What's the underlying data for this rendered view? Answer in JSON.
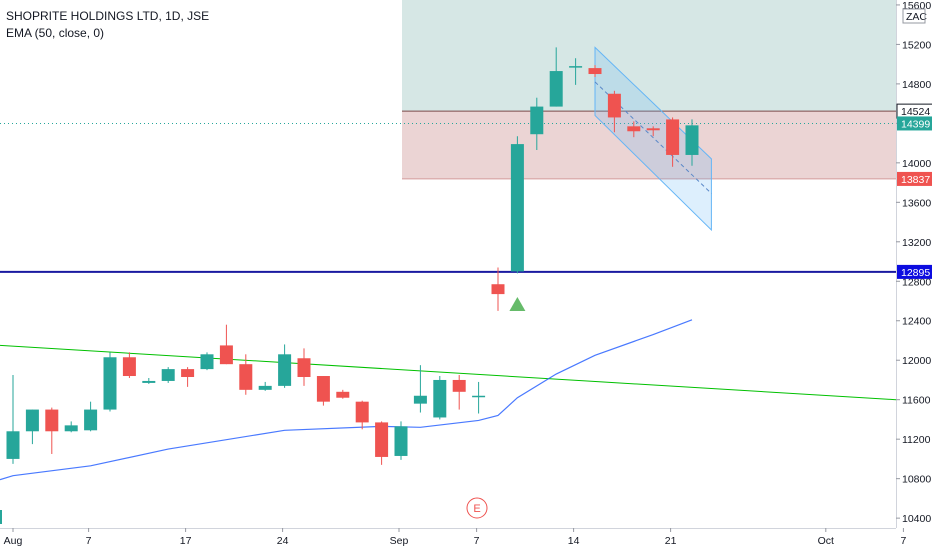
{
  "legend": {
    "title": "SHOPRITE HOLDINGS LTD, 1D, JSE",
    "indicator": "EMA (50, close, 0)"
  },
  "chart_data": {
    "type": "candlestick",
    "currency": "ZAC",
    "ylim": [
      10300,
      15650
    ],
    "y_ticks": [
      10400,
      10800,
      11200,
      11600,
      12000,
      12400,
      12800,
      13200,
      13600,
      14000,
      14400,
      14800,
      15200,
      15600
    ],
    "x_ticks": [
      {
        "label": "Aug",
        "index": 0
      },
      {
        "label": "7",
        "index": 4
      },
      {
        "label": "17",
        "index": 9
      },
      {
        "label": "24",
        "index": 14
      },
      {
        "label": "Sep",
        "index": 20
      },
      {
        "label": "7",
        "index": 24
      },
      {
        "label": "14",
        "index": 29
      },
      {
        "label": "21",
        "index": 34
      },
      {
        "label": "Oct",
        "index": 42
      },
      {
        "label": "7",
        "index": 46
      }
    ],
    "candles": [
      {
        "o": 11000,
        "h": 11850,
        "l": 10950,
        "c": 11280
      },
      {
        "o": 11280,
        "h": 11500,
        "l": 11150,
        "c": 11500
      },
      {
        "o": 11500,
        "h": 11520,
        "l": 11050,
        "c": 11280
      },
      {
        "o": 11280,
        "h": 11380,
        "l": 11270,
        "c": 11340
      },
      {
        "o": 11290,
        "h": 11580,
        "l": 11280,
        "c": 11500
      },
      {
        "o": 11500,
        "h": 12080,
        "l": 11480,
        "c": 12030
      },
      {
        "o": 12030,
        "h": 12080,
        "l": 11820,
        "c": 11840
      },
      {
        "o": 11770,
        "h": 11820,
        "l": 11760,
        "c": 11790
      },
      {
        "o": 11790,
        "h": 11930,
        "l": 11770,
        "c": 11910
      },
      {
        "o": 11910,
        "h": 11930,
        "l": 11730,
        "c": 11830
      },
      {
        "o": 11910,
        "h": 12080,
        "l": 11900,
        "c": 12060
      },
      {
        "o": 12150,
        "h": 12360,
        "l": 11960,
        "c": 11960
      },
      {
        "o": 11960,
        "h": 12060,
        "l": 11650,
        "c": 11700
      },
      {
        "o": 11700,
        "h": 11780,
        "l": 11690,
        "c": 11740
      },
      {
        "o": 11740,
        "h": 12160,
        "l": 11720,
        "c": 12060
      },
      {
        "o": 12020,
        "h": 12120,
        "l": 11740,
        "c": 11830
      },
      {
        "o": 11840,
        "h": 11840,
        "l": 11540,
        "c": 11580
      },
      {
        "o": 11680,
        "h": 11700,
        "l": 11610,
        "c": 11620
      },
      {
        "o": 11580,
        "h": 11590,
        "l": 11300,
        "c": 11370
      },
      {
        "o": 11370,
        "h": 11380,
        "l": 10940,
        "c": 11020
      },
      {
        "o": 11030,
        "h": 11380,
        "l": 10990,
        "c": 11330
      },
      {
        "o": 11560,
        "h": 11950,
        "l": 11470,
        "c": 11640
      },
      {
        "o": 11420,
        "h": 11840,
        "l": 11400,
        "c": 11800
      },
      {
        "o": 11800,
        "h": 11850,
        "l": 11500,
        "c": 11680
      },
      {
        "o": 11640,
        "h": 11780,
        "l": 11460,
        "c": 11640
      },
      {
        "o": 12770,
        "h": 12940,
        "l": 12500,
        "c": 12670
      },
      {
        "o": 12900,
        "h": 14270,
        "l": 12880,
        "c": 14190
      },
      {
        "o": 14290,
        "h": 14660,
        "l": 14130,
        "c": 14570
      },
      {
        "o": 14570,
        "h": 15170,
        "l": 14570,
        "c": 14930
      },
      {
        "o": 14980,
        "h": 15060,
        "l": 14790,
        "c": 14980
      },
      {
        "o": 14960,
        "h": 14990,
        "l": 14870,
        "c": 14900
      },
      {
        "o": 14700,
        "h": 14730,
        "l": 14310,
        "c": 14460
      },
      {
        "o": 14370,
        "h": 14420,
        "l": 14260,
        "c": 14320
      },
      {
        "o": 14350,
        "h": 14370,
        "l": 14270,
        "c": 14330
      },
      {
        "o": 14440,
        "h": 14460,
        "l": 13960,
        "c": 14080
      },
      {
        "o": 14080,
        "h": 14440,
        "l": 13970,
        "c": 14380
      }
    ],
    "ema": [
      [
        0,
        10830
      ],
      [
        4,
        10930
      ],
      [
        8,
        11100
      ],
      [
        14,
        11290
      ],
      [
        19,
        11330
      ],
      [
        21,
        11320
      ],
      [
        24,
        11390
      ],
      [
        25,
        11440
      ],
      [
        26,
        11620
      ],
      [
        28,
        11860
      ],
      [
        30,
        12050
      ],
      [
        33,
        12260
      ],
      [
        35,
        12410
      ]
    ],
    "trendline": {
      "from": [
        0,
        12150
      ],
      "to": [
        47,
        11600
      ]
    },
    "levels": {
      "target_top": 15650,
      "entry": 14524,
      "stop": 13837,
      "current": 14399,
      "support": 12895
    },
    "channel": {
      "upper": [
        [
          30,
          15170
        ],
        [
          36,
          14040
        ]
      ],
      "lower": [
        [
          30,
          14480
        ],
        [
          36,
          13320
        ]
      ],
      "mid": [
        [
          30,
          14820
        ],
        [
          36,
          13690
        ]
      ]
    },
    "signal_marker": {
      "index": 26,
      "price": 12640,
      "color": "#66bb6a"
    },
    "earnings_marker": {
      "index": 25,
      "label": "E"
    },
    "price_tags": [
      {
        "value": 14524,
        "label": "14524",
        "color": "#ffffff",
        "text_color": "#131722",
        "border": "#131722"
      },
      {
        "value": 14399,
        "label": "14399",
        "color": "#26a69a",
        "text_color": "#ffffff"
      },
      {
        "value": 13837,
        "label": "13837",
        "color": "#ef5350",
        "text_color": "#ffffff"
      },
      {
        "value": 12895,
        "label": "12895",
        "color": "#0c0ce0",
        "text_color": "#ffffff"
      }
    ],
    "colors": {
      "up": "#26a69a",
      "down": "#ef5350",
      "ema": "#2962ff",
      "trendline": "#00c000",
      "support": "#1a1aa0",
      "target_fill": "#00695c",
      "stop_fill": "#8b0000",
      "channel": "#64b5f6"
    }
  }
}
